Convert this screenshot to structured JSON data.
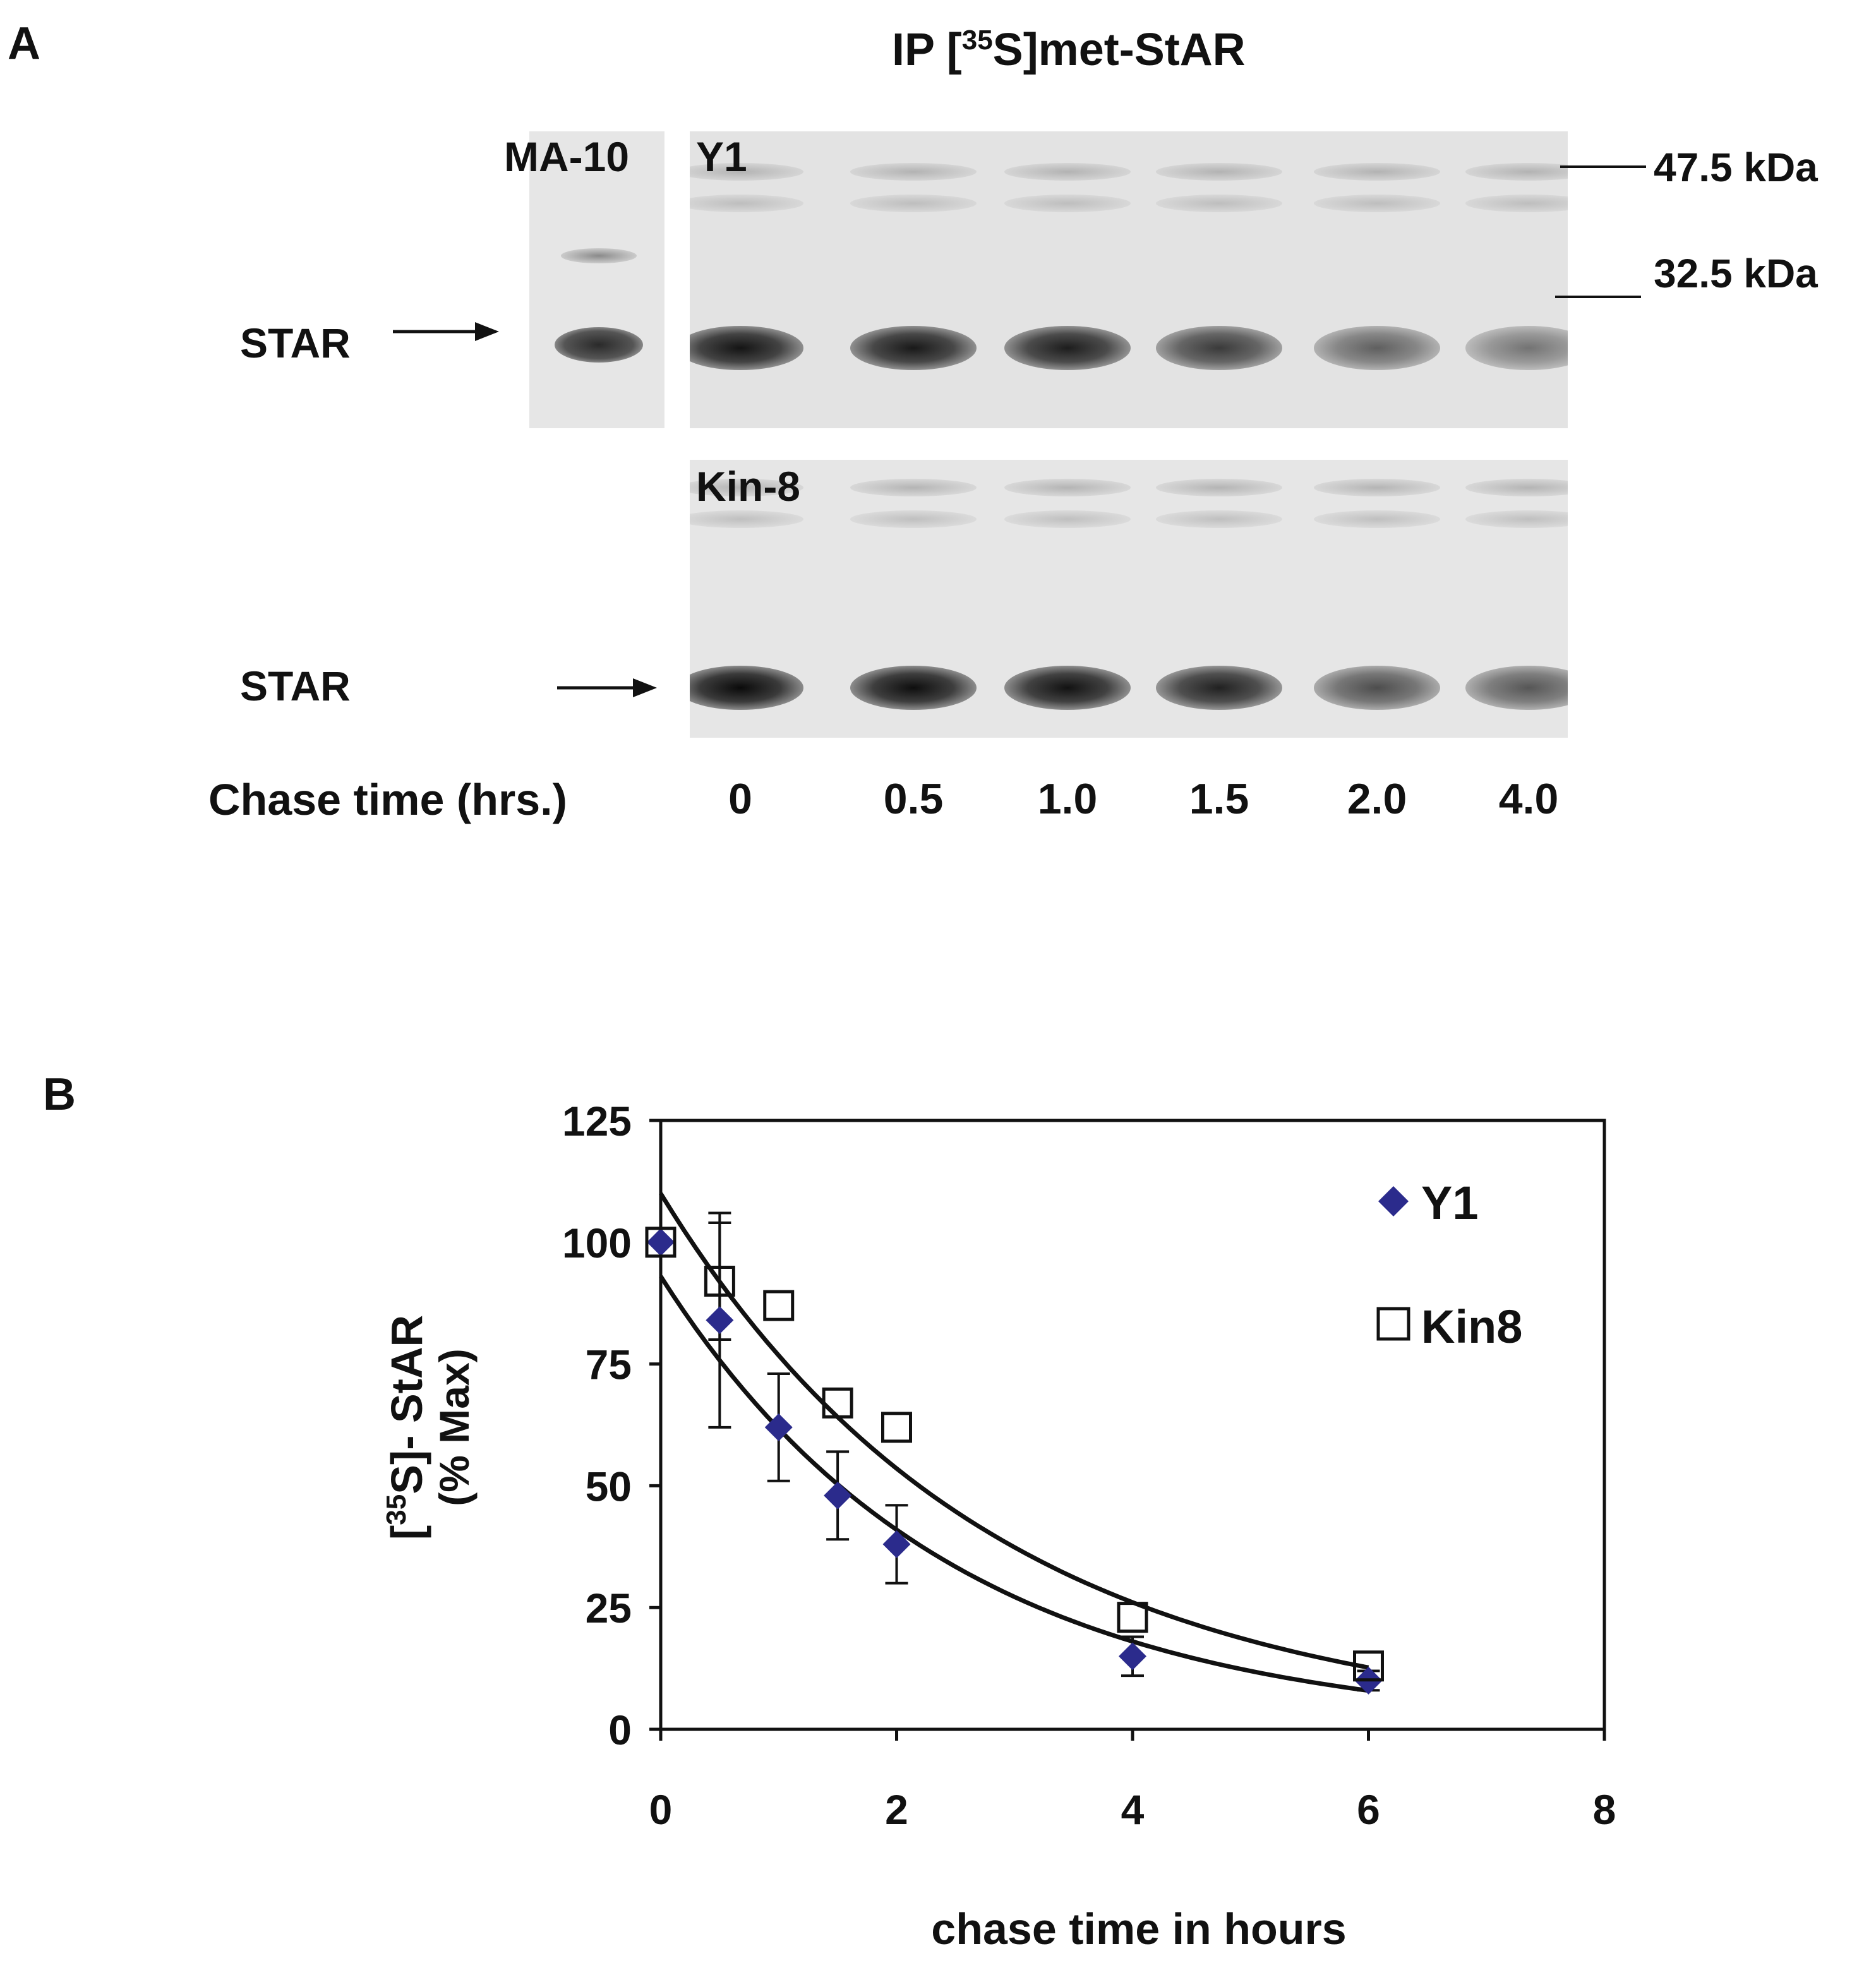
{
  "panel_a": {
    "letter": "A",
    "title": "IP  [35S]met-StAR",
    "title_prefix": "IP  [",
    "title_sup": "35",
    "title_suffix": "S]met-StAR",
    "ma10_label": "MA-10",
    "y1_label": "Y1",
    "kin8_label": "Kin-8",
    "star_label_top": "STAR",
    "star_label_bottom": "STAR",
    "marker_47": "47.5 kDa",
    "marker_32": "32.5 kDa",
    "chase_label": "Chase time (hrs.)",
    "chase_times": [
      "0",
      "0.5",
      "1.0",
      "1.5",
      "2.0",
      "4.0"
    ],
    "y1_band_intensity": [
      0.95,
      0.92,
      0.9,
      0.75,
      0.55,
      0.45
    ],
    "kin8_band_intensity": [
      1.0,
      0.98,
      0.96,
      0.88,
      0.65,
      0.6
    ],
    "ma10_band_intensity": 0.85
  },
  "panel_b": {
    "letter": "B"
  },
  "chart_data": {
    "type": "scatter",
    "xlabel": "chase time in hours",
    "ylabel_line1_prefix": "[",
    "ylabel_line1_sup": "35",
    "ylabel_line1_suffix": "S]- StAR",
    "ylabel_line2": "(% Max)",
    "xlim": [
      0,
      8
    ],
    "ylim": [
      0,
      125
    ],
    "xticks": [
      0,
      2,
      4,
      6,
      8
    ],
    "yticks": [
      0,
      25,
      50,
      75,
      100,
      125
    ],
    "legend_position": "top-right",
    "colors": {
      "y1": "#2b2b8c",
      "kin8": "#ffffff",
      "stroke": "#111111"
    },
    "series": [
      {
        "name": "Y1",
        "marker": "diamond",
        "x": [
          0,
          0.5,
          1,
          1.5,
          2,
          4,
          6
        ],
        "y": [
          100,
          84,
          62,
          48,
          38,
          15,
          10
        ],
        "err": [
          0,
          22,
          11,
          9,
          8,
          4,
          2
        ],
        "fit": {
          "a": 93,
          "k": 0.41
        }
      },
      {
        "name": "Kin8",
        "marker": "open-square",
        "x": [
          0,
          0.5,
          1,
          1.5,
          2,
          4,
          6
        ],
        "y": [
          100,
          92,
          87,
          67,
          62,
          23,
          13
        ],
        "err": [
          0,
          12,
          0,
          0,
          0,
          0,
          0
        ],
        "fit": {
          "a": 110,
          "k": 0.36
        }
      }
    ]
  }
}
